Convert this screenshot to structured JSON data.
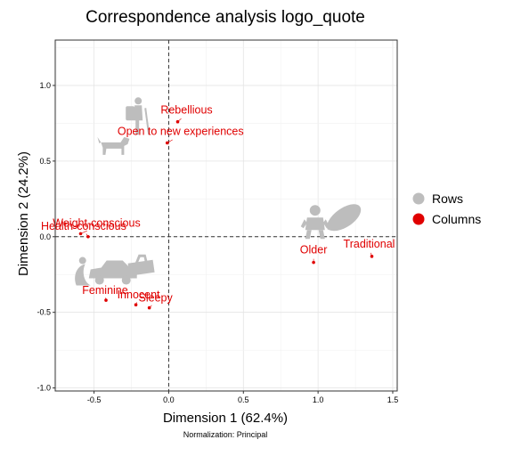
{
  "chart_data": {
    "type": "scatter",
    "title": "Correspondence analysis logo_quote",
    "xlabel": "Dimension 1 (62.4%)",
    "ylabel": "Dimension 2 (24.2%)",
    "caption": "Normalization: Principal",
    "xlim": [
      -0.76,
      1.53
    ],
    "ylim": [
      -1.02,
      1.3
    ],
    "xticks": [
      -0.5,
      0.0,
      0.5,
      1.0,
      1.5
    ],
    "xtick_labels": [
      "-0.5",
      "0.0",
      "0.5",
      "1.0",
      "1.5"
    ],
    "yticks": [
      -1.0,
      -0.5,
      0.0,
      0.5,
      1.0
    ],
    "ytick_labels": [
      "-1.0",
      "-0.5",
      "0.0",
      "0.5",
      "1.0"
    ],
    "grid": true,
    "reference_lines": [
      0,
      0
    ],
    "legend": {
      "placement": "right",
      "entries": [
        {
          "label": "Rows",
          "color": "#bdbdbd"
        },
        {
          "label": "Columns",
          "color": "#e00000"
        }
      ]
    },
    "series": [
      {
        "name": "Rows",
        "color": "#bdbdbd",
        "marker": "image",
        "points": [
          {
            "icon": "hiker-icon",
            "x": -0.24,
            "y": 0.78
          },
          {
            "icon": "dog-icon",
            "x": -0.37,
            "y": 0.6
          },
          {
            "icon": "baby-icon",
            "x": 0.98,
            "y": 0.08
          },
          {
            "icon": "bread-icon",
            "x": 1.17,
            "y": 0.12
          },
          {
            "icon": "car-icon",
            "x": -0.38,
            "y": -0.24
          },
          {
            "icon": "handbag-icon",
            "x": -0.19,
            "y": -0.2
          }
        ]
      },
      {
        "name": "Columns",
        "color": "#e00000",
        "marker": "point",
        "points": [
          {
            "label": "Rebellious",
            "x": 0.06,
            "y": 0.76
          },
          {
            "label": "Open to new experiences",
            "x": -0.01,
            "y": 0.62
          },
          {
            "label": "Weight-conscious",
            "x": -0.59,
            "y": 0.02
          },
          {
            "label": "Health-conscious",
            "x": -0.54,
            "y": 0.0
          },
          {
            "label": "Older",
            "x": 0.97,
            "y": -0.17
          },
          {
            "label": "Traditional",
            "x": 1.36,
            "y": -0.13
          },
          {
            "label": "Feminine",
            "x": -0.42,
            "y": -0.42
          },
          {
            "label": "Innocent",
            "x": -0.22,
            "y": -0.45
          },
          {
            "label": "Sleepy",
            "x": -0.13,
            "y": -0.47
          }
        ]
      }
    ]
  }
}
